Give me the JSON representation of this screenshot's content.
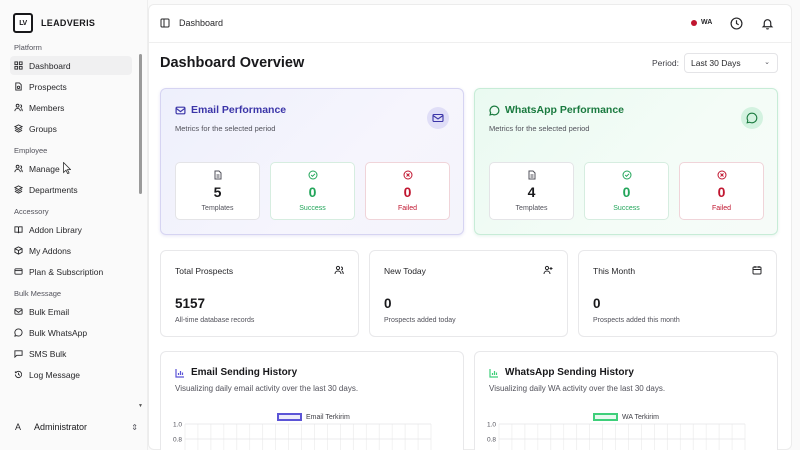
{
  "brand": {
    "logo_text": "LV",
    "name": "LEADVERIS"
  },
  "sidebar": {
    "sections": [
      {
        "label": "Platform",
        "items": [
          "Dashboard",
          "Prospects",
          "Members",
          "Groups"
        ]
      },
      {
        "label": "Employee",
        "items": [
          "Manage",
          "Departments"
        ]
      },
      {
        "label": "Accessory",
        "items": [
          "Addon Library",
          "My Addons",
          "Plan & Subscription"
        ]
      },
      {
        "label": "Bulk Message",
        "items": [
          "Bulk Email",
          "Bulk WhatsApp",
          "SMS Bulk",
          "Log Message"
        ]
      }
    ],
    "active_item": "Dashboard",
    "user": {
      "initial": "A",
      "name": "Administrator"
    }
  },
  "topbar": {
    "breadcrumb": "Dashboard",
    "wa_badge": "WA",
    "wa_status_color": "#c0152f"
  },
  "page": {
    "title": "Dashboard Overview",
    "period_label": "Period:",
    "period_value": "Last 30 Days"
  },
  "email_performance": {
    "title": "Email Performance",
    "subtitle": "Metrics for the selected period",
    "accent": "#3b35a8",
    "stats": [
      {
        "value": "5",
        "label": "Templates",
        "icon": "file-text-icon"
      },
      {
        "value": "0",
        "label": "Success",
        "icon": "check-circle-icon"
      },
      {
        "value": "0",
        "label": "Failed",
        "icon": "x-circle-icon"
      }
    ]
  },
  "wa_performance": {
    "title": "WhatsApp Performance",
    "subtitle": "Metrics for the selected period",
    "accent": "#1a7a3f",
    "stats": [
      {
        "value": "4",
        "label": "Templates",
        "icon": "file-text-icon"
      },
      {
        "value": "0",
        "label": "Success",
        "icon": "check-circle-icon"
      },
      {
        "value": "0",
        "label": "Failed",
        "icon": "x-circle-icon"
      }
    ]
  },
  "summary": [
    {
      "title": "Total Prospects",
      "value": "5157",
      "subtitle": "All-time database records",
      "icon": "users-icon"
    },
    {
      "title": "New Today",
      "value": "0",
      "subtitle": "Prospects added today",
      "icon": "user-plus-icon"
    },
    {
      "title": "This Month",
      "value": "0",
      "subtitle": "Prospects added this month",
      "icon": "calendar-icon"
    }
  ],
  "email_history": {
    "title": "Email Sending History",
    "subtitle": "Visualizing daily email activity over the last 30 days.",
    "legend": "Email Terkirim",
    "color": "#5b54d6"
  },
  "wa_history": {
    "title": "WhatsApp Sending History",
    "subtitle": "Visualizing daily WA activity over the last 30 days.",
    "legend": "WA Terkirim",
    "color": "#3ecf7a"
  },
  "chart_data": [
    {
      "type": "line",
      "series": [
        {
          "name": "Email Terkirim",
          "values": []
        }
      ],
      "y_ticks": [
        "1.0",
        "0.8"
      ],
      "ylim": [
        0,
        1.0
      ],
      "grid": true,
      "legend": "top-center"
    },
    {
      "type": "line",
      "series": [
        {
          "name": "WA Terkirim",
          "values": []
        }
      ],
      "y_ticks": [
        "1.0",
        "0.8"
      ],
      "ylim": [
        0,
        1.0
      ],
      "grid": true,
      "legend": "top-center"
    }
  ]
}
